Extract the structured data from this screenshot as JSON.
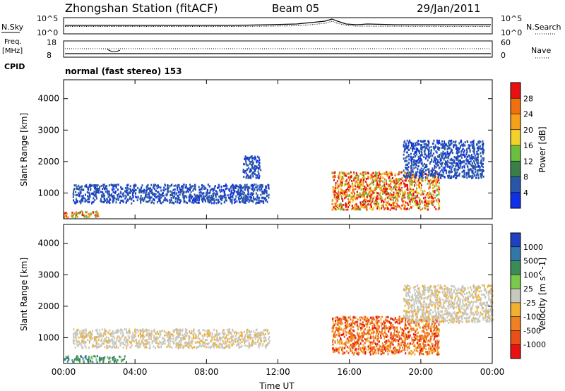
{
  "header": {
    "station": "Zhongshan Station (fitACF)",
    "beam": "Beam 05",
    "date": "29/Jan/2011"
  },
  "params": {
    "nsky_label": "N.Sky",
    "nsearch_label": "N.Search",
    "freq_label_1": "Freq.",
    "freq_label_2": "[MHz]",
    "nave_label": "Nave",
    "cpid_label": "CPID",
    "cpid_text": "normal (fast stereo) 153",
    "noise_ticks_left": [
      "10^5",
      "10^0"
    ],
    "noise_ticks_right": [
      "10^5",
      "10^0"
    ],
    "freq_ticks": [
      "18",
      "8"
    ],
    "nave_ticks": [
      "60",
      "0"
    ]
  },
  "axes": {
    "xlabel": "Time UT",
    "ylabel": "Slant Range [km]",
    "xticks": [
      "00:00",
      "04:00",
      "08:00",
      "12:00",
      "16:00",
      "20:00",
      "00:00"
    ],
    "yticks": [
      "1000",
      "2000",
      "3000",
      "4000"
    ]
  },
  "colorbars": {
    "power": {
      "label": "Power [dB]",
      "ticks": [
        "4",
        "8",
        "12",
        "16",
        "20",
        "24",
        "28"
      ],
      "colors": [
        "#1030e8",
        "#2a56a8",
        "#3c7e4a",
        "#6cbf3e",
        "#f2d22a",
        "#f4a018",
        "#f07010",
        "#e81010"
      ]
    },
    "velocity": {
      "label": "Velocity [m s^-1]",
      "ticks": [
        "1000",
        "500",
        "100",
        "25",
        "-25",
        "-100",
        "-500",
        "-1000"
      ],
      "colors": [
        "#2040c0",
        "#2f78a8",
        "#3a8a5a",
        "#7cc84a",
        "#c8c8c0",
        "#f2b030",
        "#f08020",
        "#e85018",
        "#e81010"
      ]
    }
  },
  "chart_data": [
    {
      "type": "heatmap",
      "title": "Power",
      "x_range_hours": [
        0,
        24
      ],
      "y_range_km": [
        180,
        4600
      ],
      "colorbar_range_db": [
        0,
        30
      ],
      "regions": [
        {
          "t0": 0.0,
          "t1": 2.0,
          "r0": 250,
          "r1": 450,
          "level": "mid-high"
        },
        {
          "t0": 0.5,
          "t1": 11.5,
          "r0": 700,
          "r1": 1300,
          "level": "low"
        },
        {
          "t0": 10.0,
          "t1": 11.0,
          "r0": 1500,
          "r1": 2200,
          "level": "low"
        },
        {
          "t0": 15.0,
          "t1": 21.0,
          "r0": 500,
          "r1": 1700,
          "level": "high"
        },
        {
          "t0": 19.0,
          "t1": 23.5,
          "r0": 1500,
          "r1": 2700,
          "level": "low"
        }
      ]
    },
    {
      "type": "heatmap",
      "title": "Velocity",
      "x_range_hours": [
        0,
        24
      ],
      "y_range_km": [
        180,
        4600
      ],
      "colorbar_range_ms": [
        -1000,
        1000
      ],
      "regions": [
        {
          "t0": 0.0,
          "t1": 3.5,
          "r0": 250,
          "r1": 450,
          "level": "positive"
        },
        {
          "t0": 0.5,
          "t1": 11.5,
          "r0": 700,
          "r1": 1300,
          "level": "near-zero"
        },
        {
          "t0": 15.0,
          "t1": 21.0,
          "r0": 500,
          "r1": 1700,
          "level": "negative"
        },
        {
          "t0": 19.0,
          "t1": 24.0,
          "r0": 1500,
          "r1": 2700,
          "level": "near-zero"
        }
      ]
    }
  ]
}
